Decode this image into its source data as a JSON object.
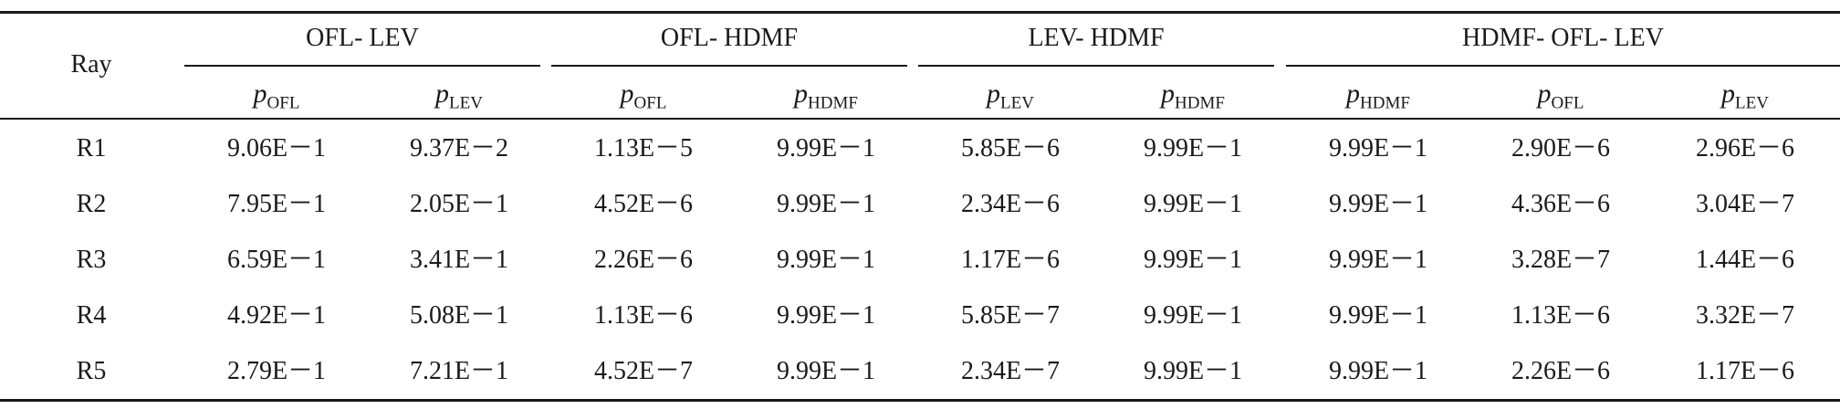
{
  "table": {
    "ray_header": "Ray",
    "groups": [
      {
        "label": "OFL-   LEV",
        "columns": [
          {
            "symbol": "p",
            "sub": "OFL"
          },
          {
            "symbol": "p",
            "sub": "LEV"
          }
        ]
      },
      {
        "label": "OFL-   HDMF",
        "columns": [
          {
            "symbol": "p",
            "sub": "OFL"
          },
          {
            "symbol": "p",
            "sub": "HDMF"
          }
        ]
      },
      {
        "label": "LEV-   HDMF",
        "columns": [
          {
            "symbol": "p",
            "sub": "LEV"
          },
          {
            "symbol": "p",
            "sub": "HDMF"
          }
        ]
      },
      {
        "label": "HDMF-   OFL-   LEV",
        "columns": [
          {
            "symbol": "p",
            "sub": "HDMF"
          },
          {
            "symbol": "p",
            "sub": "OFL"
          },
          {
            "symbol": "p",
            "sub": "LEV"
          }
        ]
      }
    ],
    "rows": [
      {
        "ray": "R1",
        "values": [
          "9.06E－1",
          "9.37E－2",
          "1.13E－5",
          "9.99E－1",
          "5.85E－6",
          "9.99E－1",
          "9.99E－1",
          "2.90E－6",
          "2.96E－6"
        ]
      },
      {
        "ray": "R2",
        "values": [
          "7.95E－1",
          "2.05E－1",
          "4.52E－6",
          "9.99E－1",
          "2.34E－6",
          "9.99E－1",
          "9.99E－1",
          "4.36E－6",
          "3.04E－7"
        ]
      },
      {
        "ray": "R3",
        "values": [
          "6.59E－1",
          "3.41E－1",
          "2.26E－6",
          "9.99E－1",
          "1.17E－6",
          "9.99E－1",
          "9.99E－1",
          "3.28E－7",
          "1.44E－6"
        ]
      },
      {
        "ray": "R4",
        "values": [
          "4.92E－1",
          "5.08E－1",
          "1.13E－6",
          "9.99E－1",
          "5.85E－7",
          "9.99E－1",
          "9.99E－1",
          "1.13E－6",
          "3.32E－7"
        ]
      },
      {
        "ray": "R5",
        "values": [
          "2.79E－1",
          "7.21E－1",
          "4.52E－7",
          "9.99E－1",
          "2.34E－7",
          "9.99E－1",
          "9.99E－1",
          "2.26E－6",
          "1.17E－6"
        ]
      }
    ]
  }
}
